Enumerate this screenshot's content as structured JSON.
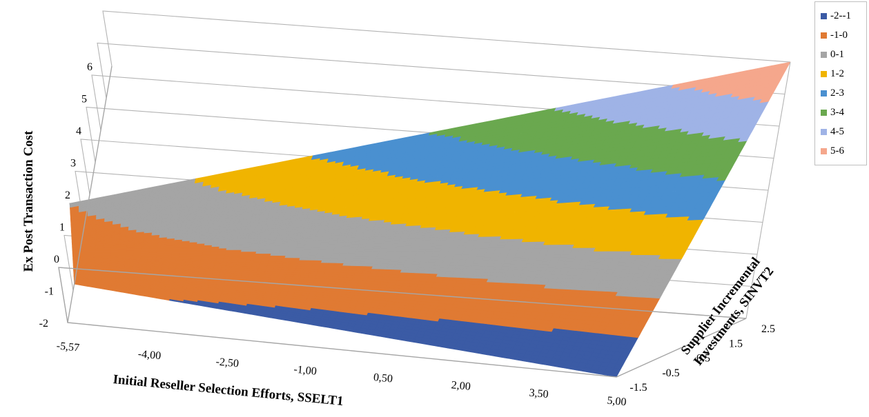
{
  "chart_data": {
    "type": "surface",
    "title": "",
    "zlabel": "Ex Post Transaction Cost",
    "xlabel": "Initial Reseller Selection Efforts, SSELT1",
    "ylabel_line1": "Supplier Incremental",
    "ylabel_line2": "Investments, SINVT2",
    "z_ticks": [
      "6",
      "5",
      "4",
      "3",
      "2",
      "1",
      "0",
      "-1",
      "-2"
    ],
    "x_ticks": [
      "-5,57",
      "-4,00",
      "-2,50",
      "-1,00",
      "0,50",
      "2,00",
      "3,50",
      "5,00"
    ],
    "y_ticks": [
      "-1.5",
      "-0.5",
      "0.5",
      "1.5",
      "2.5"
    ],
    "zlim": [
      -2,
      6
    ],
    "xlim": [
      -5.57,
      5.0
    ],
    "ylim": [
      -1.5,
      2.5
    ],
    "legend": [
      {
        "label": "-2--1",
        "color": "#3b5ba5"
      },
      {
        "label": "-1-0",
        "color": "#e07a33"
      },
      {
        "label": "0-1",
        "color": "#a5a5a5"
      },
      {
        "label": "1-2",
        "color": "#f0b400"
      },
      {
        "label": "2-3",
        "color": "#4a90d0"
      },
      {
        "label": "3-4",
        "color": "#6aa84f"
      },
      {
        "label": "4-5",
        "color": "#9fb3e6"
      },
      {
        "label": "5-6",
        "color": "#f5a78c"
      }
    ],
    "surface_corners": {
      "x_min_y_min": -0.8,
      "x_max_y_min": -2.0,
      "x_min_y_max": 0.0,
      "x_max_y_max": 6.0
    }
  }
}
